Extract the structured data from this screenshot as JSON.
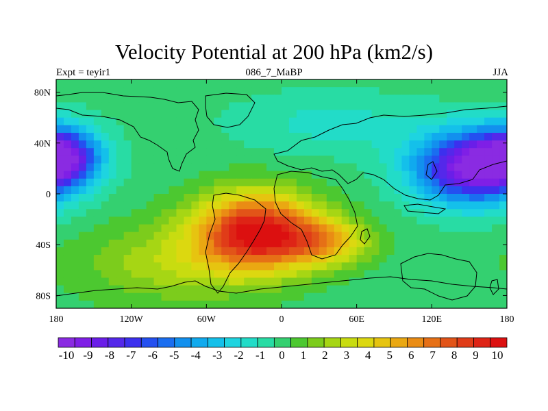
{
  "chart_data": {
    "type": "heatmap",
    "title": "Velocity Potential at 200 hPa (km2/s)",
    "left_label": "Expt = teyir1",
    "center_label": "086_7_MaBP",
    "right_label": "JJA",
    "x_ticks": [
      "180",
      "120W",
      "60W",
      "0",
      "60E",
      "120E",
      "180"
    ],
    "x_tick_values": [
      -180,
      -120,
      -60,
      0,
      60,
      120,
      180
    ],
    "y_ticks": [
      "80N",
      "40N",
      "0",
      "40S",
      "80S"
    ],
    "y_tick_values": [
      80,
      40,
      0,
      -40,
      -80
    ],
    "xlim": [
      -180,
      180
    ],
    "ylim": [
      -90,
      90
    ],
    "colorbar": {
      "labels": [
        "-10",
        "-9",
        "-8",
        "-7",
        "-6",
        "-5",
        "-4",
        "-3",
        "-2",
        "-1",
        "0",
        "1",
        "2",
        "3",
        "4",
        "5",
        "6",
        "7",
        "8",
        "9",
        "10"
      ],
      "colors": [
        "#8a2be2",
        "#7f1fe6",
        "#6a1ee8",
        "#5428ea",
        "#3c30ee",
        "#2450f0",
        "#1a6ef0",
        "#1290ee",
        "#10aaee",
        "#14c0ea",
        "#1ed4e0",
        "#22dcc8",
        "#28dca4",
        "#34d070",
        "#4cc830",
        "#7ccc1c",
        "#a6d614",
        "#c8dc10",
        "#dcd810",
        "#e6c410",
        "#eaa812",
        "#ea8c14",
        "#e67016",
        "#e25418",
        "#e03c18",
        "#de2416",
        "#dc1010"
      ]
    },
    "field_centers": [
      {
        "lon": -20,
        "lat": -30,
        "value": 10.5,
        "spread_lon": 48,
        "spread_lat": 30
      },
      {
        "lon": 35,
        "lat": -38,
        "value": 4.5,
        "spread_lon": 35,
        "spread_lat": 18
      },
      {
        "lon": -90,
        "lat": -55,
        "value": 2.5,
        "spread_lon": 70,
        "spread_lat": 30
      },
      {
        "lon": 150,
        "lat": 20,
        "value": -10,
        "spread_lon": 45,
        "spread_lat": 28
      },
      {
        "lon": -175,
        "lat": 30,
        "value": -8,
        "spread_lon": 30,
        "spread_lat": 22
      },
      {
        "lon": 40,
        "lat": 55,
        "value": -1.5,
        "spread_lon": 80,
        "spread_lat": 25
      }
    ]
  }
}
